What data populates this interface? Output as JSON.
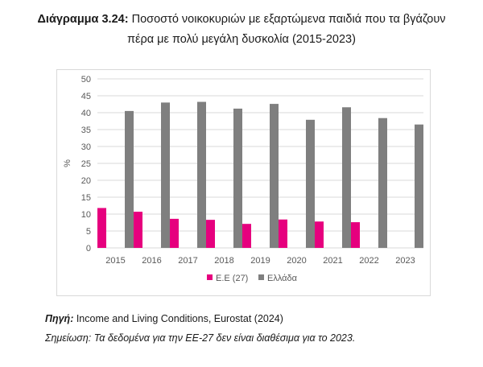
{
  "figure": {
    "label": "Διάγραμμα 3.24:",
    "title_line1": " Ποσοστό νοικοκυριών με εξαρτώμενα παιδιά που τα βγάζουν",
    "title_line2": "πέρα με πολύ μεγάλη δυσκολία (2015-2023)"
  },
  "chart_data": {
    "type": "bar",
    "categories": [
      "2015",
      "2016",
      "2017",
      "2018",
      "2019",
      "2020",
      "2021",
      "2022",
      "2023"
    ],
    "series": [
      {
        "name": "Ε.Ε (27)",
        "color": "#e6007e",
        "values": [
          11.8,
          10.7,
          8.6,
          8.3,
          7.1,
          8.4,
          7.8,
          7.6,
          null
        ]
      },
      {
        "name": "Ελλάδα",
        "color": "#7f7f7f",
        "values": [
          40.5,
          43.0,
          43.2,
          41.2,
          42.6,
          37.9,
          41.6,
          38.4,
          36.5
        ]
      }
    ],
    "ylabel": "%",
    "ylim": [
      0,
      50
    ],
    "yticks": [
      0,
      5,
      10,
      15,
      20,
      25,
      30,
      35,
      40,
      45,
      50
    ],
    "grid": true,
    "legend": "bottom"
  },
  "source": {
    "label": "Πηγή:",
    "text": " Income and Living Conditions, Eurostat (2024)"
  },
  "note": "Σημείωση: Τα δεδομένα για την ΕΕ-27 δεν είναι διαθέσιμα για το 2023."
}
